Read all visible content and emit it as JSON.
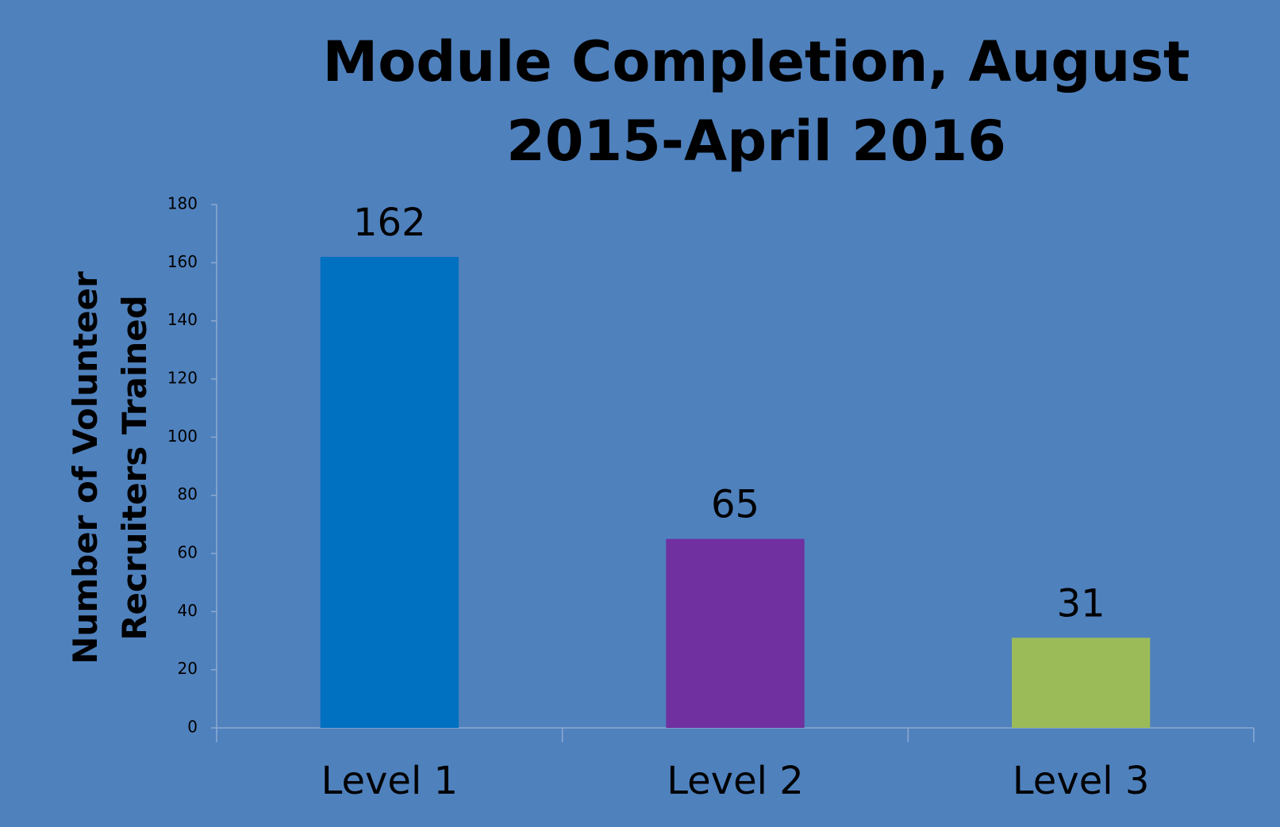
{
  "chart_data": {
    "type": "bar",
    "title": "Module Completion, August 2015-April 2016",
    "y_label": "Number of Volunteer Recruiters Trained",
    "categories": [
      "Level 1",
      "Level 2",
      "Level 3"
    ],
    "values": [
      162,
      65,
      31
    ],
    "colors": [
      "#0070c0",
      "#7030a0",
      "#9bbb59"
    ],
    "ylim": [
      0,
      180
    ],
    "yticks": [
      0,
      20,
      40,
      60,
      80,
      100,
      120,
      140,
      160,
      180
    ],
    "grid": false
  }
}
